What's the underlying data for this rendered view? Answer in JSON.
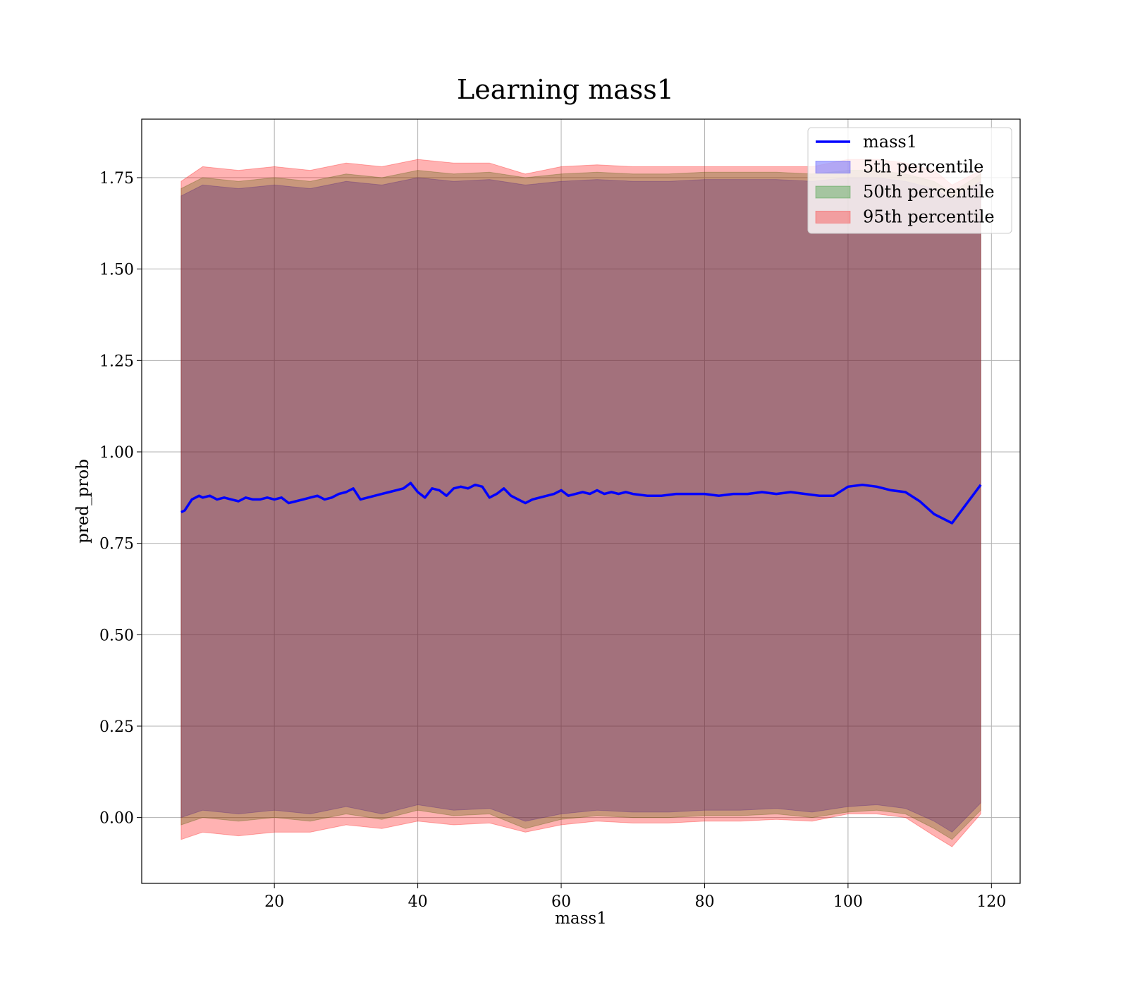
{
  "chart_data": {
    "type": "line",
    "title": "Learning mass1",
    "xlabel": "mass1",
    "ylabel": "pred_prob",
    "xlim": [
      1.5,
      124
    ],
    "ylim": [
      -0.18,
      1.91
    ],
    "xticks": [
      20,
      40,
      60,
      80,
      100,
      120
    ],
    "xtick_labels": [
      "20",
      "40",
      "60",
      "80",
      "100",
      "120"
    ],
    "yticks": [
      0.0,
      0.25,
      0.5,
      0.75,
      1.0,
      1.25,
      1.5,
      1.75
    ],
    "ytick_labels": [
      "0.00",
      "0.25",
      "0.50",
      "0.75",
      "1.00",
      "1.25",
      "1.50",
      "1.75"
    ],
    "grid": true,
    "legend_position": "top-right",
    "series": [
      {
        "name": "mass1",
        "kind": "line",
        "color": "#0000ff",
        "x": [
          7,
          7.5,
          8,
          8.5,
          9,
          9.5,
          10,
          11,
          12,
          13,
          14,
          15,
          16,
          17,
          18,
          19,
          20,
          21,
          22,
          23,
          24,
          25,
          26,
          27,
          28,
          29,
          30,
          31,
          32,
          33,
          34,
          35,
          36,
          37,
          38,
          39,
          40,
          41,
          42,
          43,
          44,
          45,
          46,
          47,
          48,
          49,
          50,
          51,
          52,
          53,
          54,
          55,
          56,
          57,
          58,
          59,
          60,
          61,
          62,
          63,
          64,
          65,
          66,
          67,
          68,
          69,
          70,
          72,
          74,
          76,
          78,
          80,
          82,
          84,
          86,
          88,
          90,
          92,
          94,
          96,
          98,
          100,
          102,
          104,
          106,
          108,
          110,
          112,
          114.5,
          118.5
        ],
        "y": [
          0.835,
          0.84,
          0.855,
          0.87,
          0.875,
          0.88,
          0.875,
          0.88,
          0.87,
          0.875,
          0.87,
          0.865,
          0.875,
          0.87,
          0.87,
          0.875,
          0.87,
          0.875,
          0.86,
          0.865,
          0.87,
          0.875,
          0.88,
          0.87,
          0.875,
          0.885,
          0.89,
          0.9,
          0.87,
          0.875,
          0.88,
          0.885,
          0.89,
          0.895,
          0.9,
          0.915,
          0.89,
          0.875,
          0.9,
          0.895,
          0.88,
          0.9,
          0.905,
          0.9,
          0.91,
          0.905,
          0.875,
          0.885,
          0.9,
          0.88,
          0.87,
          0.86,
          0.87,
          0.875,
          0.88,
          0.885,
          0.895,
          0.88,
          0.885,
          0.89,
          0.885,
          0.895,
          0.885,
          0.89,
          0.885,
          0.89,
          0.885,
          0.88,
          0.88,
          0.885,
          0.885,
          0.885,
          0.88,
          0.885,
          0.885,
          0.89,
          0.885,
          0.89,
          0.885,
          0.88,
          0.88,
          0.905,
          0.91,
          0.905,
          0.895,
          0.89,
          0.865,
          0.83,
          0.805,
          0.91
        ]
      },
      {
        "name": "5th percentile",
        "kind": "band",
        "color": "#0000ff",
        "x": [
          7,
          10,
          15,
          20,
          25,
          30,
          35,
          40,
          45,
          50,
          55,
          60,
          65,
          70,
          75,
          80,
          85,
          90,
          95,
          100,
          104,
          108,
          112,
          114.5,
          118.5
        ],
        "lower": [
          0.0,
          0.02,
          0.01,
          0.02,
          0.01,
          0.03,
          0.01,
          0.035,
          0.02,
          0.025,
          -0.01,
          0.01,
          0.02,
          0.015,
          0.015,
          0.02,
          0.02,
          0.025,
          0.015,
          0.03,
          0.035,
          0.025,
          -0.01,
          -0.04,
          0.04
        ],
        "upper": [
          1.7,
          1.73,
          1.72,
          1.73,
          1.72,
          1.74,
          1.73,
          1.75,
          1.74,
          1.745,
          1.73,
          1.74,
          1.745,
          1.74,
          1.74,
          1.745,
          1.745,
          1.745,
          1.74,
          1.75,
          1.75,
          1.74,
          1.72,
          1.69,
          1.74
        ]
      },
      {
        "name": "50th percentile",
        "kind": "band",
        "color": "#008000",
        "x": [
          7,
          10,
          15,
          20,
          25,
          30,
          35,
          40,
          45,
          50,
          55,
          60,
          65,
          70,
          75,
          80,
          85,
          90,
          95,
          100,
          104,
          108,
          112,
          114.5,
          118.5
        ],
        "lower": [
          -0.02,
          0.0,
          -0.01,
          0.0,
          -0.01,
          0.01,
          -0.005,
          0.02,
          0.005,
          0.01,
          -0.03,
          -0.005,
          0.005,
          0.0,
          0.0,
          0.005,
          0.005,
          0.01,
          0.0,
          0.015,
          0.02,
          0.01,
          -0.03,
          -0.06,
          0.02
        ],
        "upper": [
          1.72,
          1.75,
          1.74,
          1.75,
          1.74,
          1.76,
          1.75,
          1.77,
          1.76,
          1.765,
          1.75,
          1.76,
          1.765,
          1.76,
          1.76,
          1.765,
          1.765,
          1.765,
          1.76,
          1.77,
          1.77,
          1.76,
          1.74,
          1.71,
          1.76
        ]
      },
      {
        "name": "95th percentile",
        "kind": "band",
        "color": "#ff0000",
        "x": [
          7,
          10,
          15,
          20,
          25,
          30,
          35,
          40,
          45,
          50,
          55,
          60,
          65,
          70,
          75,
          80,
          85,
          90,
          95,
          100,
          104,
          108,
          112,
          114.5,
          118.5
        ],
        "lower": [
          -0.06,
          -0.04,
          -0.05,
          -0.04,
          -0.04,
          -0.02,
          -0.03,
          -0.01,
          -0.02,
          -0.015,
          -0.04,
          -0.02,
          -0.01,
          -0.015,
          -0.015,
          -0.01,
          -0.01,
          -0.005,
          -0.01,
          0.01,
          0.01,
          0.0,
          -0.05,
          -0.08,
          0.01
        ],
        "upper": [
          1.74,
          1.78,
          1.77,
          1.78,
          1.77,
          1.79,
          1.78,
          1.8,
          1.79,
          1.79,
          1.76,
          1.78,
          1.785,
          1.78,
          1.78,
          1.78,
          1.78,
          1.78,
          1.78,
          1.8,
          1.8,
          1.79,
          1.77,
          1.73,
          1.77
        ]
      }
    ]
  }
}
